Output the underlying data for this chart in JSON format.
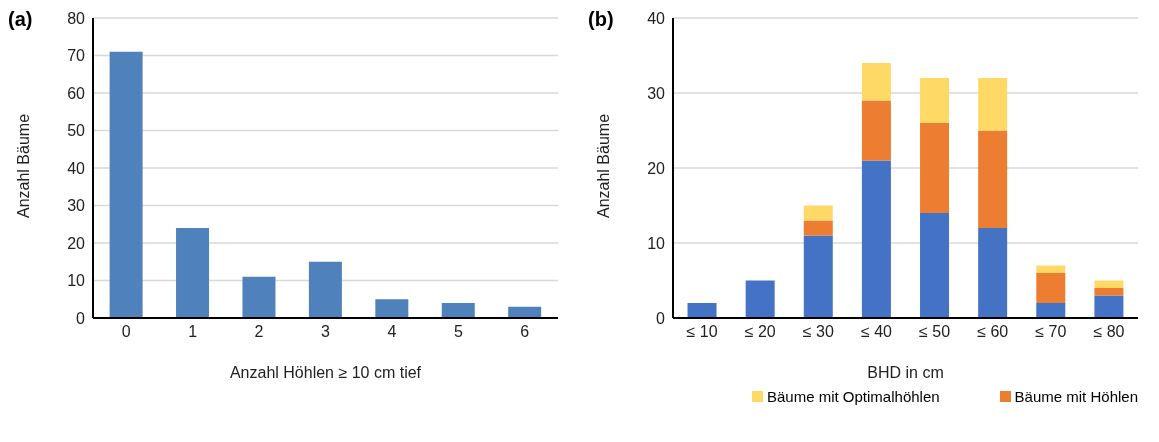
{
  "chart_data": [
    {
      "type": "bar",
      "title": "(a)",
      "xlabel": "Anzahl Höhlen ≥ 10 cm tief",
      "ylabel": "Anzahl Bäume",
      "categories": [
        "0",
        "1",
        "2",
        "3",
        "4",
        "5",
        "6"
      ],
      "values": [
        71,
        24,
        11,
        15,
        5,
        4,
        3
      ],
      "color": "#4f81bd",
      "ylim": [
        0,
        80
      ],
      "yticks": [
        0,
        10,
        20,
        30,
        40,
        50,
        60,
        70,
        80
      ],
      "grid": "y"
    },
    {
      "type": "bar",
      "title": "(b)",
      "xlabel": "BHD in cm",
      "ylabel": "Anzahl Bäume",
      "categories": [
        "≤ 10",
        "≤ 20",
        "≤ 30",
        "≤ 40",
        "≤ 50",
        "≤ 60",
        "≤ 70",
        "≤ 80"
      ],
      "stacked": true,
      "series": [
        {
          "color": "#4472c4",
          "values": [
            2,
            5,
            11,
            21,
            14,
            12,
            2,
            3
          ]
        },
        {
          "name": "Bäume mit Höhlen",
          "color": "#ed7d31",
          "values": [
            0,
            0,
            2,
            8,
            12,
            13,
            4,
            1
          ]
        },
        {
          "name": "Bäume mit Optimalhöhlen",
          "color": "#ffd966",
          "values": [
            0,
            0,
            2,
            5,
            6,
            7,
            1,
            1
          ]
        }
      ],
      "ylim": [
        0,
        40
      ],
      "yticks": [
        0,
        10,
        20,
        30,
        40
      ],
      "grid": "y",
      "legend": "bottom"
    }
  ]
}
